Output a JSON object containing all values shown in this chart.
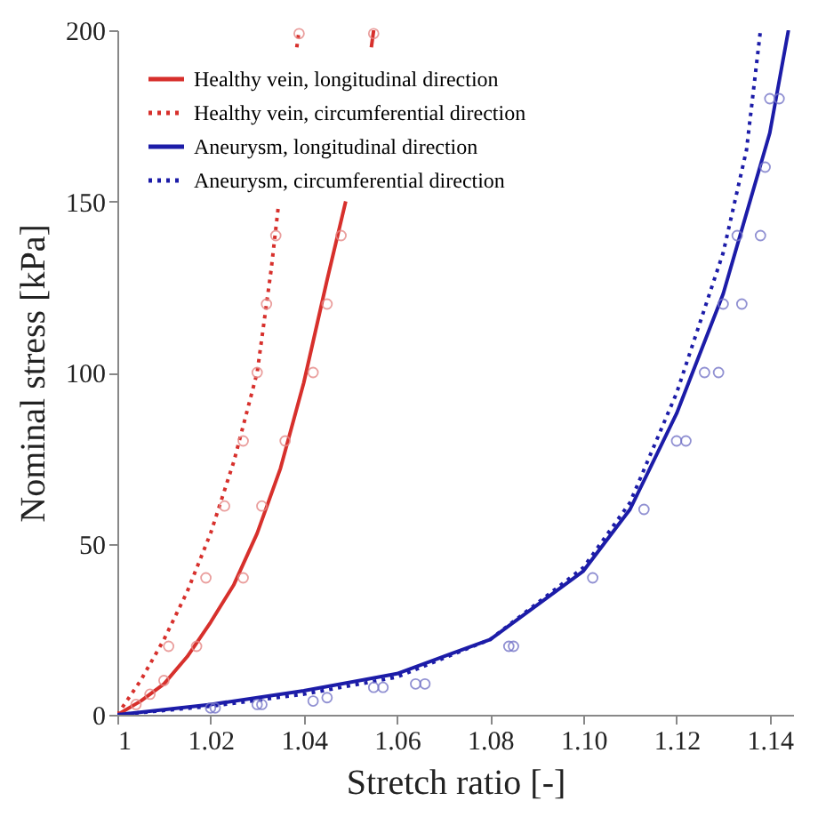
{
  "chart_data": {
    "type": "line",
    "xlabel": "Stretch ratio [-]",
    "ylabel": "Nominal stress [kPa]",
    "xlim": [
      1,
      1.145
    ],
    "ylim": [
      0,
      200
    ],
    "xticks": [
      1,
      1.02,
      1.04,
      1.06,
      1.08,
      {
        "value": 1.1,
        "label": "1.10"
      },
      1.12,
      1.14
    ],
    "yticks": [
      0,
      50,
      100,
      150,
      200
    ],
    "grid": false,
    "legend": "top left",
    "series": [
      {
        "name": "Healthy vein, longitudinal direction",
        "color": "#d7302c",
        "line_style": "solid",
        "marker": "none",
        "x": [
          1,
          1.005,
          1.01,
          1.015,
          1.02,
          1.025,
          1.03,
          1.035,
          1.04,
          1.045,
          1.049,
          1.052,
          1.0545,
          1.055
        ],
        "values": [
          0,
          4,
          9,
          17,
          27,
          38,
          53,
          72,
          97,
          127,
          150,
          null,
          195,
          200
        ]
      },
      {
        "name": "Healthy vein, circumferential direction",
        "color": "#d7302c",
        "line_style": "dotted",
        "marker": "none",
        "x": [
          1,
          1.005,
          1.01,
          1.015,
          1.02,
          1.025,
          1.03,
          1.033,
          1.0345,
          1.036,
          1.0385,
          1.039
        ],
        "values": [
          0,
          10,
          22,
          36,
          53,
          74,
          100,
          130,
          148,
          null,
          195,
          200
        ]
      },
      {
        "name": "Aneurysm, longitudinal direction",
        "color": "#1c1ca8",
        "line_style": "solid",
        "marker": "none",
        "x": [
          1,
          1.02,
          1.04,
          1.06,
          1.08,
          1.1,
          1.11,
          1.12,
          1.13,
          1.14,
          1.144
        ],
        "values": [
          0,
          3,
          7,
          12,
          22,
          42,
          60,
          88,
          123,
          170,
          200
        ]
      },
      {
        "name": "Aneurysm, circumferential direction",
        "color": "#1c1ca8",
        "line_style": "dotted",
        "marker": "none",
        "x": [
          1,
          1.02,
          1.04,
          1.06,
          1.08,
          1.1,
          1.11,
          1.12,
          1.13,
          1.135,
          1.138
        ],
        "values": [
          0,
          2.5,
          6,
          11,
          22,
          43,
          62,
          94,
          135,
          165,
          200
        ]
      },
      {
        "type": "scatter",
        "color": "#e58886",
        "marker": "circle",
        "x": [
          1.004,
          1.007,
          1.011,
          1.019,
          1.023,
          1.027,
          1.03,
          1.032,
          1.034,
          1.039,
          1.01,
          1.017,
          1.027,
          1.031,
          1.036,
          1.042,
          1.045,
          1.048,
          1.055
        ],
        "values": [
          3,
          6,
          20,
          40,
          61,
          80,
          100,
          120,
          140,
          199,
          10,
          20,
          40,
          61,
          80,
          100,
          120,
          140,
          199
        ]
      },
      {
        "type": "scatter",
        "color": "#7676c8",
        "marker": "circle",
        "x": [
          1.02,
          1.021,
          1.03,
          1.031,
          1.042,
          1.045,
          1.055,
          1.057,
          1.064,
          1.066,
          1.084,
          1.085,
          1.102,
          1.113,
          1.12,
          1.122,
          1.126,
          1.129,
          1.13,
          1.134,
          1.133,
          1.138,
          1.139,
          1.14,
          1.142
        ],
        "values": [
          2,
          2,
          3,
          3,
          4,
          5,
          8,
          8,
          9,
          9,
          20,
          20,
          40,
          60,
          80,
          80,
          100,
          100,
          120,
          120,
          140,
          140,
          160,
          180,
          180
        ]
      }
    ]
  }
}
